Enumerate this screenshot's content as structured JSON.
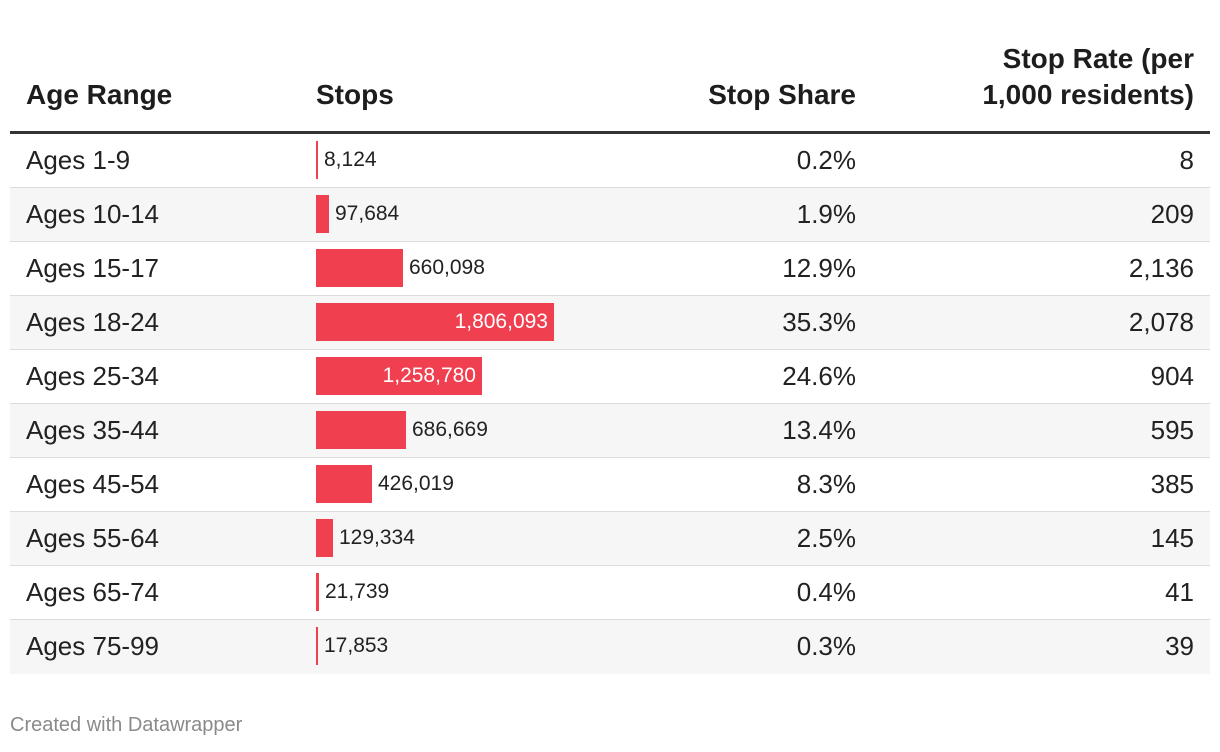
{
  "columns": {
    "age": "Age Range",
    "stops": "Stops",
    "share": "Stop Share",
    "rate_line1": "Stop Rate (per",
    "rate_line2": "1,000 residents)"
  },
  "bar_color": "#f04050",
  "chart_data": {
    "type": "table",
    "columns": [
      "Age Range",
      "Stops",
      "Stop Share",
      "Stop Rate (per 1,000 residents)"
    ],
    "stops_max": 1806093,
    "rows": [
      {
        "age": "Ages 1-9",
        "stops": 8124,
        "stops_label": "8,124",
        "share": "0.2%",
        "rate": "8"
      },
      {
        "age": "Ages 10-14",
        "stops": 97684,
        "stops_label": "97,684",
        "share": "1.9%",
        "rate": "209"
      },
      {
        "age": "Ages 15-17",
        "stops": 660098,
        "stops_label": "660,098",
        "share": "12.9%",
        "rate": "2,136"
      },
      {
        "age": "Ages 18-24",
        "stops": 1806093,
        "stops_label": "1,806,093",
        "share": "35.3%",
        "rate": "2,078"
      },
      {
        "age": "Ages 25-34",
        "stops": 1258780,
        "stops_label": "1,258,780",
        "share": "24.6%",
        "rate": "904"
      },
      {
        "age": "Ages 35-44",
        "stops": 686669,
        "stops_label": "686,669",
        "share": "13.4%",
        "rate": "595"
      },
      {
        "age": "Ages 45-54",
        "stops": 426019,
        "stops_label": "426,019",
        "share": "8.3%",
        "rate": "385"
      },
      {
        "age": "Ages 55-64",
        "stops": 129334,
        "stops_label": "129,334",
        "share": "2.5%",
        "rate": "145"
      },
      {
        "age": "Ages 65-74",
        "stops": 21739,
        "stops_label": "21,739",
        "share": "0.4%",
        "rate": "41"
      },
      {
        "age": "Ages 75-99",
        "stops": 17853,
        "stops_label": "17,853",
        "share": "0.3%",
        "rate": "39"
      }
    ]
  },
  "footer": "Created with Datawrapper"
}
